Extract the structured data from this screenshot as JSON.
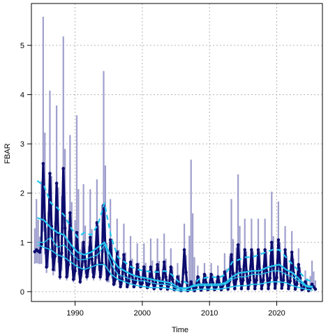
{
  "chart_data": {
    "type": "line",
    "title": "",
    "xlabel": "Time",
    "ylabel": "FBAR",
    "xlim": [
      1983.5,
      2026.8
    ],
    "ylim": [
      -0.2,
      5.85
    ],
    "xticks": [
      1990,
      2000,
      2010,
      2020
    ],
    "yticks": [
      0,
      1,
      2,
      3,
      4,
      5
    ],
    "grid": true,
    "series_colors": {
      "interval": "#8e8ec4",
      "fbar": "#0c0c6e",
      "trend": "#22c8f0"
    },
    "series": [
      {
        "kind": "seasonal-fbar-with-intervals",
        "quarters_per_year": 4,
        "years": [
          1984,
          1985,
          1986,
          1987,
          1988,
          1989,
          1990,
          1991,
          1992,
          1993,
          1994,
          1995,
          1996,
          1997,
          1998,
          1999,
          2000,
          2001,
          2002,
          2003,
          2004,
          2005,
          2006,
          2007,
          2008,
          2009,
          2010,
          2011,
          2012,
          2013,
          2014,
          2015,
          2016,
          2017,
          2018,
          2019,
          2020,
          2021,
          2022,
          2023,
          2024,
          2025
        ],
        "peak": [
          0.85,
          2.6,
          2.4,
          2.2,
          2.5,
          1.6,
          1.2,
          1.0,
          1.1,
          1.4,
          1.75,
          1.05,
          0.8,
          0.75,
          0.6,
          0.55,
          0.5,
          0.5,
          0.55,
          0.6,
          0.5,
          0.3,
          0.85,
          0.2,
          0.3,
          0.35,
          0.35,
          0.3,
          0.4,
          0.75,
          0.95,
          0.85,
          0.85,
          0.85,
          0.85,
          1.0,
          1.05,
          0.85,
          0.8,
          0.55,
          0.2,
          0.15
        ],
        "low": [
          0.8,
          0.5,
          0.45,
          0.3,
          0.3,
          0.25,
          0.2,
          0.3,
          0.3,
          0.3,
          0.25,
          0.15,
          0.1,
          0.1,
          0.1,
          0.1,
          0.08,
          0.06,
          0.06,
          0.05,
          0.04,
          0.02,
          0.02,
          0.02,
          0.03,
          0.04,
          0.04,
          0.04,
          0.05,
          0.06,
          0.06,
          0.06,
          0.06,
          0.06,
          0.06,
          0.07,
          0.07,
          0.06,
          0.05,
          0.04,
          0.02,
          0.05
        ],
        "upper_peak": [
          1.8,
          5.5,
          4.0,
          3.7,
          5.1,
          3.1,
          3.5,
          2.1,
          2.0,
          2.2,
          4.4,
          1.8,
          1.4,
          1.3,
          1.05,
          0.9,
          0.9,
          1.0,
          1.0,
          1.1,
          0.8,
          0.5,
          1.3,
          2.6,
          0.45,
          0.5,
          0.5,
          0.45,
          0.7,
          1.8,
          2.3,
          1.4,
          1.4,
          1.4,
          1.4,
          1.95,
          1.75,
          1.25,
          1.15,
          0.8,
          0.35,
          0.55
        ],
        "lower_low": [
          0.4,
          0.3,
          0.25,
          0.2,
          0.18,
          0.15,
          0.12,
          0.18,
          0.18,
          0.18,
          0.15,
          0.08,
          0.05,
          0.05,
          0.05,
          0.05,
          0.04,
          0.03,
          0.03,
          0.02,
          0.02,
          0.0,
          0.0,
          0.0,
          0.0,
          0.01,
          0.01,
          0.01,
          0.02,
          0.02,
          0.02,
          0.02,
          0.02,
          0.02,
          0.02,
          0.03,
          0.03,
          0.02,
          0.02,
          0.01,
          0.0,
          0.02
        ]
      },
      {
        "kind": "trend-median",
        "x": [
          1984,
          1985,
          1986,
          1987,
          1988,
          1989,
          1990,
          1991,
          1992,
          1993,
          1994,
          1995,
          1996,
          1997,
          1998,
          1999,
          2000,
          2001,
          2002,
          2003,
          2004,
          2005,
          2006,
          2007,
          2008,
          2009,
          2010,
          2011,
          2012,
          2013,
          2014,
          2015,
          2016,
          2017,
          2018,
          2019,
          2020,
          2021,
          2022,
          2023,
          2024,
          2025
        ],
        "y": [
          1.0,
          1.0,
          1.1,
          0.9,
          0.95,
          0.8,
          0.65,
          0.65,
          0.7,
          0.75,
          0.95,
          0.55,
          0.35,
          0.3,
          0.25,
          0.22,
          0.22,
          0.18,
          0.15,
          0.15,
          0.12,
          0.05,
          0.05,
          0.1,
          0.12,
          0.12,
          0.12,
          0.12,
          0.15,
          0.25,
          0.3,
          0.3,
          0.35,
          0.35,
          0.38,
          0.42,
          0.42,
          0.35,
          0.3,
          0.2,
          0.1,
          0.08
        ]
      },
      {
        "kind": "trend-central",
        "x": [
          1984,
          1985,
          1986,
          1987,
          1988,
          1989,
          1990,
          1991,
          1992,
          1993,
          1994,
          1995,
          1996,
          1997,
          1998,
          1999,
          2000,
          2001,
          2002,
          2003,
          2004,
          2005,
          2006,
          2007,
          2008,
          2009,
          2010,
          2011,
          2012,
          2013,
          2014,
          2015,
          2016,
          2017,
          2018,
          2019,
          2020,
          2021,
          2022,
          2023,
          2024,
          2025
        ],
        "y": [
          1.5,
          1.45,
          1.3,
          1.2,
          1.15,
          0.95,
          0.8,
          0.75,
          0.8,
          0.9,
          1.0,
          0.7,
          0.5,
          0.42,
          0.35,
          0.3,
          0.28,
          0.25,
          0.22,
          0.2,
          0.17,
          0.08,
          0.07,
          0.1,
          0.15,
          0.15,
          0.15,
          0.15,
          0.18,
          0.3,
          0.38,
          0.4,
          0.42,
          0.42,
          0.48,
          0.52,
          0.55,
          0.45,
          0.38,
          0.25,
          0.12,
          0.1
        ]
      },
      {
        "kind": "trend-upper",
        "x": [
          1984,
          1985,
          1986,
          1987,
          1988,
          1989,
          1990,
          1991,
          1992,
          1993,
          1994,
          1995,
          1996,
          1997,
          1998,
          1999,
          2000,
          2001,
          2002,
          2003,
          2004,
          2005,
          2006,
          2007,
          2008,
          2009,
          2010,
          2011,
          2012,
          2013,
          2014,
          2015,
          2016,
          2017,
          2018,
          2019,
          2020,
          2021,
          2022,
          2023,
          2024,
          2025
        ],
        "y": [
          2.25,
          2.15,
          1.8,
          1.7,
          1.55,
          1.3,
          1.1,
          1.2,
          1.15,
          1.35,
          1.8,
          1.1,
          0.7,
          0.6,
          0.5,
          0.45,
          0.42,
          0.4,
          0.4,
          0.42,
          0.35,
          0.2,
          0.2,
          0.1,
          0.25,
          0.28,
          0.3,
          0.28,
          0.35,
          0.6,
          0.65,
          0.7,
          0.7,
          0.75,
          0.8,
          0.85,
          0.85,
          0.7,
          0.55,
          0.4,
          0.25,
          0.2
        ]
      },
      {
        "kind": "trend-lower",
        "x": [
          1984,
          1985,
          1986,
          1987,
          1988,
          1989,
          1990,
          1991,
          1992,
          1993,
          1994,
          1995,
          1996,
          1997,
          1998,
          1999,
          2000,
          2001,
          2002,
          2003,
          2004,
          2005,
          2006,
          2007,
          2008,
          2009,
          2010,
          2011,
          2012,
          2013,
          2014,
          2015,
          2016,
          2017,
          2018,
          2019,
          2020,
          2021,
          2022,
          2023,
          2024,
          2025
        ],
        "y": [
          0.95,
          0.9,
          0.85,
          0.75,
          0.7,
          0.6,
          0.5,
          0.45,
          0.5,
          0.55,
          0.55,
          0.35,
          0.25,
          0.2,
          0.15,
          0.12,
          0.1,
          0.08,
          0.08,
          0.08,
          0.05,
          0.02,
          0.02,
          0.03,
          0.05,
          0.05,
          0.05,
          0.05,
          0.07,
          0.1,
          0.12,
          0.12,
          0.15,
          0.15,
          0.18,
          0.2,
          0.2,
          0.18,
          0.12,
          0.08,
          0.05,
          0.03
        ]
      }
    ]
  }
}
